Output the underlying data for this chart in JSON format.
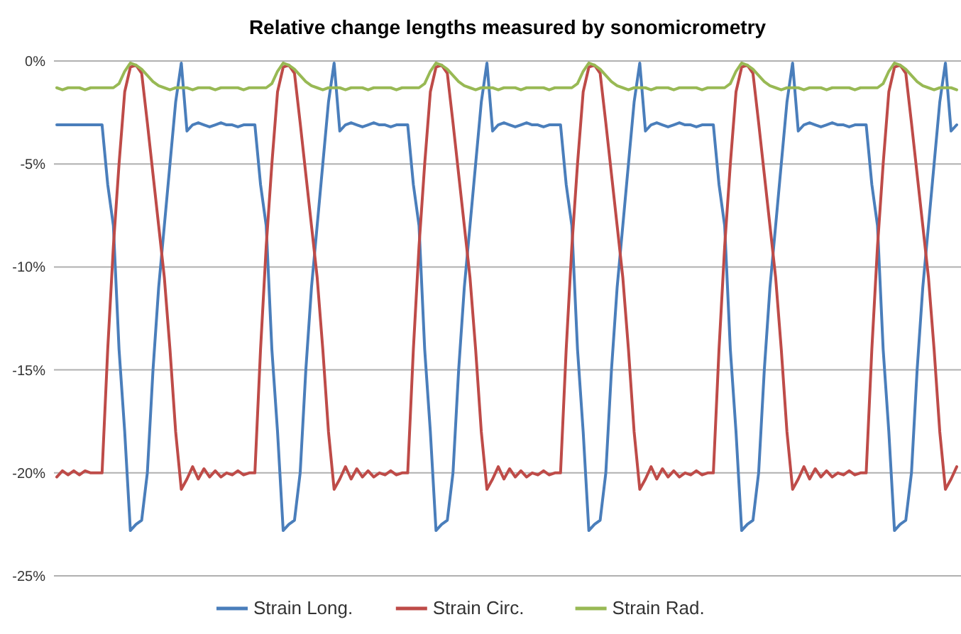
{
  "chart_data": {
    "type": "line",
    "title": "Relative change lengths measured by sonomicrometry",
    "categories": [
      null,
      null,
      null,
      null,
      null,
      null,
      null,
      null,
      null,
      null,
      null,
      null,
      null,
      null,
      null,
      null,
      null,
      null,
      null,
      null,
      null,
      null,
      null,
      null,
      null,
      null,
      null,
      null,
      null,
      null,
      null,
      null,
      null,
      null,
      null,
      null,
      null,
      null,
      null,
      null,
      null,
      null,
      null,
      null,
      null,
      null,
      null,
      null,
      null,
      null,
      null,
      null,
      null,
      null,
      null,
      null,
      null,
      null,
      null,
      null,
      null,
      null,
      null,
      null,
      null,
      null,
      null,
      null,
      null,
      null,
      null,
      null,
      null,
      null,
      null,
      null,
      null,
      null,
      null,
      null,
      null,
      null,
      null,
      null,
      null,
      null,
      null,
      null,
      null,
      null,
      null,
      null,
      null,
      null,
      null,
      null,
      null,
      null,
      null,
      null,
      null,
      null,
      null,
      null,
      null,
      null,
      null,
      null,
      null,
      null,
      null,
      null,
      null,
      null,
      null,
      null,
      null,
      null,
      null,
      null,
      null,
      null,
      null,
      null,
      null,
      null,
      null,
      null,
      null,
      null,
      null,
      null,
      null,
      null,
      null,
      null,
      null,
      null,
      null,
      null,
      null,
      null,
      null,
      null,
      null,
      null,
      null,
      null,
      null,
      null,
      null,
      null,
      null,
      null,
      null,
      null,
      null,
      null,
      null,
      null
    ],
    "series": [
      {
        "name": "Strain Long.",
        "color": "#4a7ebb",
        "values": [
          -3.1,
          -3.1,
          -3.1,
          -3.1,
          -3.1,
          -3.1,
          -3.1,
          -3.1,
          -3.1,
          -6,
          -8,
          -14,
          -18,
          -22.8,
          -22.5,
          -22.3,
          -20,
          -15,
          -11,
          -8,
          -5,
          -2,
          -0.1,
          -3.4,
          -3.1,
          -3.0,
          -3.1,
          -3.2,
          -3.1,
          -3.0,
          -3.1,
          -3.1,
          -3.2,
          -3.1,
          -3.1,
          -3.1,
          -6,
          -8,
          -14,
          -18,
          -22.8,
          -22.5,
          -22.3,
          -20,
          -15,
          -11,
          -8,
          -5,
          -2,
          -0.1,
          -3.4,
          -3.1,
          -3.0,
          -3.1,
          -3.2,
          -3.1,
          -3.0,
          -3.1,
          -3.1,
          -3.2,
          -3.1,
          -3.1,
          -3.1,
          -6,
          -8,
          -14,
          -18,
          -22.8,
          -22.5,
          -22.3,
          -20,
          -15,
          -11,
          -8,
          -5,
          -2,
          -0.1,
          -3.4,
          -3.1,
          -3.0,
          -3.1,
          -3.2,
          -3.1,
          -3.0,
          -3.1,
          -3.1,
          -3.2,
          -3.1,
          -3.1,
          -3.1,
          -6,
          -8,
          -14,
          -18,
          -22.8,
          -22.5,
          -22.3,
          -20,
          -15,
          -11,
          -8,
          -5,
          -2,
          -0.1,
          -3.4,
          -3.1,
          -3.0,
          -3.1,
          -3.2,
          -3.1,
          -3.0,
          -3.1,
          -3.1,
          -3.2,
          -3.1,
          -3.1,
          -3.1,
          -6,
          -8,
          -14,
          -18,
          -22.8,
          -22.5,
          -22.3,
          -20,
          -15,
          -11,
          -8,
          -5,
          -2,
          -0.1,
          -3.4,
          -3.1,
          -3.0,
          -3.1,
          -3.2,
          -3.1,
          -3.0,
          -3.1,
          -3.1,
          -3.2,
          -3.1,
          -3.1,
          -3.1,
          -6,
          -8,
          -14,
          -18,
          -22.8,
          -22.5,
          -22.3,
          -20,
          -15,
          -11,
          -8,
          -5,
          -2,
          -0.1,
          -3.4,
          -3.1
        ]
      },
      {
        "name": "Strain Circ.",
        "color": "#be4b48",
        "values": [
          -20.2,
          -19.9,
          -20.1,
          -19.9,
          -20.1,
          -19.9,
          -20,
          -20,
          -20,
          -14,
          -9,
          -5,
          -1.5,
          -0.3,
          -0.2,
          -0.6,
          -3,
          -5.5,
          -8,
          -10.5,
          -14,
          -18,
          -20.8,
          -20.3,
          -19.7,
          -20.3,
          -19.8,
          -20.2,
          -19.9,
          -20.2,
          -20,
          -20.1,
          -19.9,
          -20.1,
          -20,
          -20,
          -14,
          -9,
          -5,
          -1.5,
          -0.3,
          -0.2,
          -0.6,
          -3,
          -5.5,
          -8,
          -10.5,
          -14,
          -18,
          -20.8,
          -20.3,
          -19.7,
          -20.3,
          -19.8,
          -20.2,
          -19.9,
          -20.2,
          -20,
          -20.1,
          -19.9,
          -20.1,
          -20,
          -20,
          -14,
          -9,
          -5,
          -1.5,
          -0.3,
          -0.2,
          -0.6,
          -3,
          -5.5,
          -8,
          -10.5,
          -14,
          -18,
          -20.8,
          -20.3,
          -19.7,
          -20.3,
          -19.8,
          -20.2,
          -19.9,
          -20.2,
          -20,
          -20.1,
          -19.9,
          -20.1,
          -20,
          -20,
          -14,
          -9,
          -5,
          -1.5,
          -0.3,
          -0.2,
          -0.6,
          -3,
          -5.5,
          -8,
          -10.5,
          -14,
          -18,
          -20.8,
          -20.3,
          -19.7,
          -20.3,
          -19.8,
          -20.2,
          -19.9,
          -20.2,
          -20,
          -20.1,
          -19.9,
          -20.1,
          -20,
          -20,
          -14,
          -9,
          -5,
          -1.5,
          -0.3,
          -0.2,
          -0.6,
          -3,
          -5.5,
          -8,
          -10.5,
          -14,
          -18,
          -20.8,
          -20.3,
          -19.7,
          -20.3,
          -19.8,
          -20.2,
          -19.9,
          -20.2,
          -20,
          -20.1,
          -19.9,
          -20.1,
          -20,
          -20,
          -14,
          -9,
          -5,
          -1.5,
          -0.3,
          -0.2,
          -0.6,
          -3,
          -5.5,
          -8,
          -10.5,
          -14,
          -18,
          -20.8,
          -20.3,
          -19.7
        ]
      },
      {
        "name": "Strain Rad.",
        "color": "#98b954",
        "values": [
          -1.3,
          -1.4,
          -1.3,
          -1.3,
          -1.3,
          -1.4,
          -1.3,
          -1.3,
          -1.3,
          -1.3,
          -1.3,
          -1.1,
          -0.5,
          -0.1,
          -0.2,
          -0.4,
          -0.7,
          -1.0,
          -1.2,
          -1.3,
          -1.4,
          -1.3,
          -1.3,
          -1.3,
          -1.4,
          -1.3,
          -1.3,
          -1.3,
          -1.4,
          -1.3,
          -1.3,
          -1.3,
          -1.3,
          -1.4,
          -1.3,
          -1.3,
          -1.3,
          -1.3,
          -1.1,
          -0.5,
          -0.1,
          -0.2,
          -0.4,
          -0.7,
          -1.0,
          -1.2,
          -1.3,
          -1.4,
          -1.3,
          -1.3,
          -1.3,
          -1.4,
          -1.3,
          -1.3,
          -1.3,
          -1.4,
          -1.3,
          -1.3,
          -1.3,
          -1.3,
          -1.4,
          -1.3,
          -1.3,
          -1.3,
          -1.3,
          -1.1,
          -0.5,
          -0.1,
          -0.2,
          -0.4,
          -0.7,
          -1.0,
          -1.2,
          -1.3,
          -1.4,
          -1.3,
          -1.3,
          -1.3,
          -1.4,
          -1.3,
          -1.3,
          -1.3,
          -1.4,
          -1.3,
          -1.3,
          -1.3,
          -1.3,
          -1.4,
          -1.3,
          -1.3,
          -1.3,
          -1.3,
          -1.1,
          -0.5,
          -0.1,
          -0.2,
          -0.4,
          -0.7,
          -1.0,
          -1.2,
          -1.3,
          -1.4,
          -1.3,
          -1.3,
          -1.3,
          -1.4,
          -1.3,
          -1.3,
          -1.3,
          -1.4,
          -1.3,
          -1.3,
          -1.3,
          -1.3,
          -1.4,
          -1.3,
          -1.3,
          -1.3,
          -1.3,
          -1.1,
          -0.5,
          -0.1,
          -0.2,
          -0.4,
          -0.7,
          -1.0,
          -1.2,
          -1.3,
          -1.4,
          -1.3,
          -1.3,
          -1.3,
          -1.4,
          -1.3,
          -1.3,
          -1.3,
          -1.4,
          -1.3,
          -1.3,
          -1.3,
          -1.3,
          -1.4,
          -1.3,
          -1.3,
          -1.3,
          -1.3,
          -1.1,
          -0.5,
          -0.1,
          -0.2,
          -0.4,
          -0.7,
          -1.0,
          -1.2,
          -1.3,
          -1.4,
          -1.3,
          -1.3,
          -1.3,
          -1.4
        ]
      }
    ],
    "ylim": [
      -25,
      0
    ],
    "yticks": [
      {
        "value": 0,
        "label": "0%"
      },
      {
        "value": -5,
        "label": "-5%"
      },
      {
        "value": -10,
        "label": "-10%"
      },
      {
        "value": -15,
        "label": "-15%"
      },
      {
        "value": -20,
        "label": "-20%"
      },
      {
        "value": -25,
        "label": "-25%"
      }
    ],
    "grid": "y",
    "legend": "bottom",
    "tick_labels": "y",
    "marker": "none",
    "line_style": "solid"
  }
}
